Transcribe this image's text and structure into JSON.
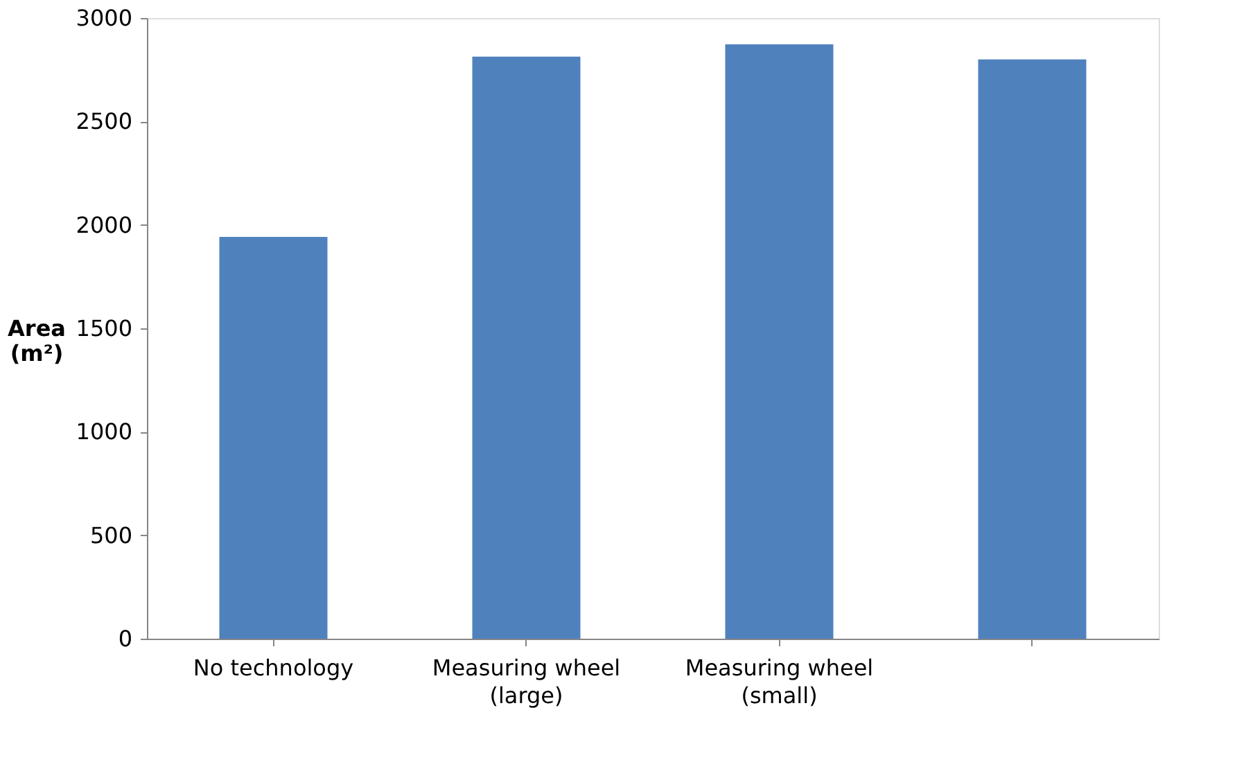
{
  "chart_data": {
    "type": "bar",
    "ylabel": "Area (m²)",
    "categories": [
      "No technology",
      "Measuring wheel (large)",
      "Measuring wheel (small)",
      null
    ],
    "values": [
      1942,
      2813,
      2873,
      2800
    ],
    "color": "#4f81bd",
    "ylim": [
      0,
      3000
    ],
    "yticks": [
      0,
      500,
      1000,
      1500,
      2000,
      2500,
      3000
    ],
    "grid": false
  }
}
